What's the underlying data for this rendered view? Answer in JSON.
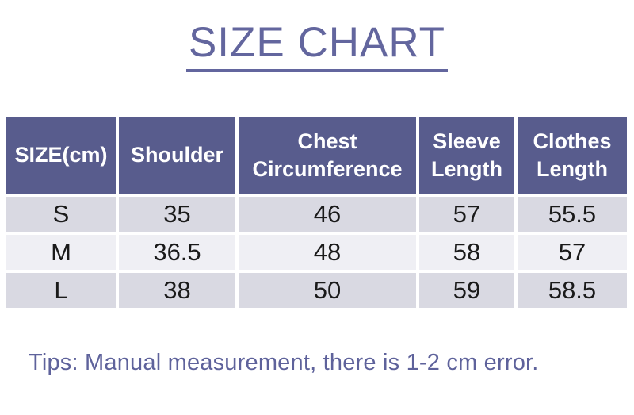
{
  "page": {
    "title": "SIZE CHART",
    "tips": "Tips: Manual measurement, there is 1-2 cm error."
  },
  "chart_data": {
    "type": "table",
    "title": "SIZE CHART",
    "columns": [
      "SIZE(cm)",
      "Shoulder",
      "Chest Circumference",
      "Sleeve Length",
      "Clothes Length"
    ],
    "rows": [
      [
        "S",
        "35",
        "46",
        "57",
        "55.5"
      ],
      [
        "M",
        "36.5",
        "48",
        "58",
        "57"
      ],
      [
        "L",
        "38",
        "50",
        "59",
        "58.5"
      ]
    ],
    "note": "Tips: Manual measurement, there is 1-2 cm error.",
    "units": "cm"
  },
  "colors": {
    "page_bg": "#ffffff",
    "header_bg": "#585c8d",
    "header_text": "#ffffff",
    "row_odd_bg": "#d9d9e2",
    "row_even_bg": "#efeff4",
    "cell_text": "#1a1a1a",
    "accent_text": "#63669e"
  }
}
